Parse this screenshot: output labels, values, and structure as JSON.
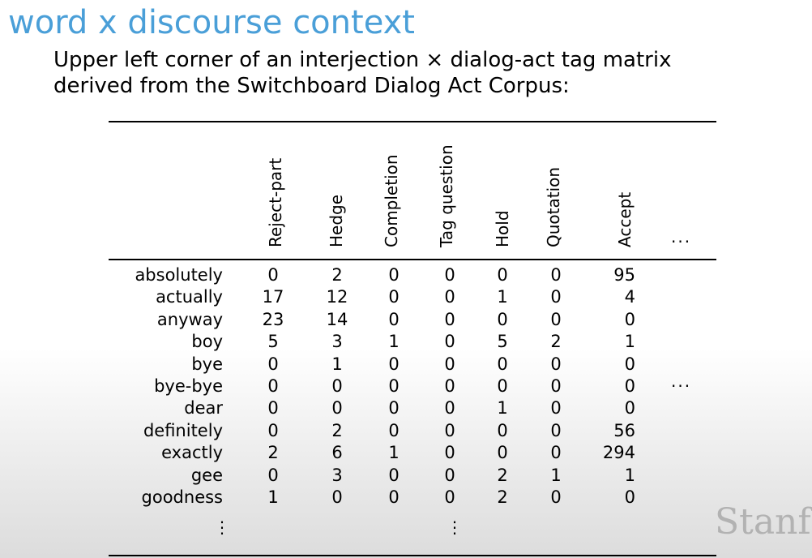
{
  "title": "word x discourse context",
  "subtitle": {
    "line1": "Upper left corner of an interjection × dialog-act tag matrix",
    "line2": "derived from the Switchboard Dialog Act Corpus:"
  },
  "table": {
    "columns": [
      "Reject-part",
      "Hedge",
      "Completion",
      "Tag question",
      "Hold",
      "Quotation",
      "Accept"
    ],
    "ellipsis": "...",
    "rows": [
      {
        "word": "absolutely",
        "values": [
          "0",
          "2",
          "0",
          "0",
          "0",
          "0",
          "95"
        ]
      },
      {
        "word": "actually",
        "values": [
          "17",
          "12",
          "0",
          "0",
          "1",
          "0",
          "4"
        ]
      },
      {
        "word": "anyway",
        "values": [
          "23",
          "14",
          "0",
          "0",
          "0",
          "0",
          "0"
        ]
      },
      {
        "word": "boy",
        "values": [
          "5",
          "3",
          "1",
          "0",
          "5",
          "2",
          "1"
        ]
      },
      {
        "word": "bye",
        "values": [
          "0",
          "1",
          "0",
          "0",
          "0",
          "0",
          "0"
        ]
      },
      {
        "word": "bye-bye",
        "values": [
          "0",
          "0",
          "0",
          "0",
          "0",
          "0",
          "0"
        ]
      },
      {
        "word": "dear",
        "values": [
          "0",
          "0",
          "0",
          "0",
          "1",
          "0",
          "0"
        ]
      },
      {
        "word": "definitely",
        "values": [
          "0",
          "2",
          "0",
          "0",
          "0",
          "0",
          "56"
        ]
      },
      {
        "word": "exactly",
        "values": [
          "2",
          "6",
          "1",
          "0",
          "0",
          "0",
          "294"
        ]
      },
      {
        "word": "gee",
        "values": [
          "0",
          "3",
          "0",
          "0",
          "2",
          "1",
          "1"
        ]
      },
      {
        "word": "goodness",
        "values": [
          "1",
          "0",
          "0",
          "0",
          "2",
          "0",
          "0"
        ]
      }
    ],
    "vertical_ellipsis": "⋮"
  },
  "watermark": "Stanfo"
}
